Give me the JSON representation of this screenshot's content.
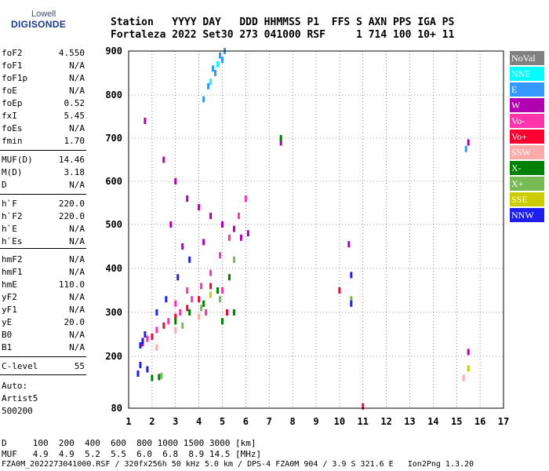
{
  "logo": {
    "line1": "Lowell",
    "line2": "DIGISONDE"
  },
  "header": {
    "line1": "Station   YYYY DAY   DDD HHMMSS P1  FFS S AXN PPS IGA PS",
    "line2": "Fortaleza 2022 Set30 273 041000 RSF     1 714 100 10+ 11"
  },
  "params_a": [
    {
      "name": "foF2",
      "value": "4.550"
    },
    {
      "name": "foF1",
      "value": "N/A"
    },
    {
      "name": "foF1p",
      "value": "N/A"
    },
    {
      "name": "foE",
      "value": "N/A"
    },
    {
      "name": "foEp",
      "value": "0.52"
    },
    {
      "name": "fxI",
      "value": "5.45"
    },
    {
      "name": "foEs",
      "value": "N/A"
    },
    {
      "name": "fmin",
      "value": "1.70"
    }
  ],
  "params_b": [
    {
      "name": "MUF(D)",
      "value": "14.46"
    },
    {
      "name": "M(D)",
      "value": "3.18"
    },
    {
      "name": "D",
      "value": "N/A"
    }
  ],
  "params_c": [
    {
      "name": "h`F",
      "value": "220.0"
    },
    {
      "name": "h`F2",
      "value": "220.0"
    },
    {
      "name": "h`E",
      "value": "N/A"
    },
    {
      "name": "h`Es",
      "value": "N/A"
    }
  ],
  "params_d": [
    {
      "name": "hmF2",
      "value": "N/A"
    },
    {
      "name": "hmF1",
      "value": "N/A"
    },
    {
      "name": "hmE",
      "value": "110.0"
    },
    {
      "name": "yF2",
      "value": "N/A"
    },
    {
      "name": "yF1",
      "value": "N/A"
    },
    {
      "name": "yE",
      "value": "20.0"
    },
    {
      "name": "B0",
      "value": "N/A"
    },
    {
      "name": "B1",
      "value": "N/A"
    }
  ],
  "params_e": [
    {
      "name": "C-level",
      "value": "55"
    }
  ],
  "auto": {
    "line1": "Auto:",
    "line2": "Artist5",
    "line3": "500200"
  },
  "footer": {
    "d_line": "D     100  200  400  600  800 1000 1500 3000 [km]",
    "muf_line": "MUF   4.9  4.9  5.2  5.5  6.0  6.8  8.9 14.5 [MHz]",
    "file_line": "FZA0M_2022273041000.RSF / 320fx256h 50 kHz 5.0 km / DPS-4 FZA0M 904 / 3.9 S 321.6 E   Ion2Png 1.3.20"
  },
  "legend": [
    {
      "label": "NoVal",
      "color": "#808080"
    },
    {
      "label": "NNE",
      "color": "#00ffff"
    },
    {
      "label": "E",
      "color": "#3399ff"
    },
    {
      "label": "W",
      "color": "#b000b0"
    },
    {
      "label": "Vo-",
      "color": "#ff33aa"
    },
    {
      "label": "Vo+",
      "color": "#ff0033"
    },
    {
      "label": "SSW",
      "color": "#ffaaaa"
    },
    {
      "label": "X-",
      "color": "#008000"
    },
    {
      "label": "X+",
      "color": "#77bb55"
    },
    {
      "label": "SSE",
      "color": "#cccc00"
    },
    {
      "label": "NNW",
      "color": "#2020ee"
    }
  ],
  "chart_data": {
    "type": "scatter",
    "xlabel": "",
    "ylabel": "",
    "xlim": [
      1,
      17
    ],
    "ylim": [
      80,
      900
    ],
    "x_ticks": [
      1,
      2,
      3,
      4,
      5,
      6,
      7,
      8,
      9,
      10,
      11,
      12,
      13,
      14,
      15,
      16,
      17
    ],
    "y_ticks": [
      80,
      200,
      300,
      400,
      500,
      600,
      700,
      800,
      900
    ],
    "grid": true,
    "series": [
      {
        "name": "E",
        "color": "#3399ff",
        "points": [
          [
            4.4,
            820
          ],
          [
            4.6,
            860
          ],
          [
            4.9,
            890
          ],
          [
            5.1,
            900
          ],
          [
            4.2,
            790
          ],
          [
            5.0,
            880
          ],
          [
            4.7,
            850
          ],
          [
            15.4,
            675
          ]
        ]
      },
      {
        "name": "W",
        "color": "#b000b0",
        "points": [
          [
            1.7,
            740
          ],
          [
            2.5,
            650
          ],
          [
            3.0,
            600
          ],
          [
            3.5,
            560
          ],
          [
            4.0,
            540
          ],
          [
            4.5,
            520
          ],
          [
            5.0,
            500
          ],
          [
            5.5,
            490
          ],
          [
            5.8,
            470
          ],
          [
            6.1,
            480
          ],
          [
            2.8,
            500
          ],
          [
            3.3,
            450
          ],
          [
            4.2,
            460
          ],
          [
            7.5,
            690
          ],
          [
            10.4,
            455
          ],
          [
            15.5,
            690
          ],
          [
            15.5,
            210
          ]
        ]
      },
      {
        "name": "Vo-",
        "color": "#ff33aa",
        "points": [
          [
            1.8,
            240
          ],
          [
            2.2,
            260
          ],
          [
            2.7,
            280
          ],
          [
            3.2,
            300
          ],
          [
            3.7,
            330
          ],
          [
            4.1,
            360
          ],
          [
            4.5,
            390
          ],
          [
            4.9,
            430
          ],
          [
            5.3,
            470
          ],
          [
            5.7,
            520
          ],
          [
            6.0,
            560
          ],
          [
            3.0,
            320
          ],
          [
            3.5,
            350
          ],
          [
            4.3,
            300
          ],
          [
            5.0,
            350
          ]
        ]
      },
      {
        "name": "Vo+",
        "color": "#ff0033",
        "points": [
          [
            1.6,
            230
          ],
          [
            2.0,
            245
          ],
          [
            2.5,
            270
          ],
          [
            3.0,
            290
          ],
          [
            3.5,
            310
          ],
          [
            4.0,
            330
          ],
          [
            4.5,
            360
          ],
          [
            5.2,
            300
          ],
          [
            10.0,
            350
          ],
          [
            11.0,
            84
          ]
        ]
      },
      {
        "name": "SSW",
        "color": "#ffaaaa",
        "points": [
          [
            2.2,
            220
          ],
          [
            3.0,
            260
          ],
          [
            4.0,
            290
          ],
          [
            15.3,
            150
          ]
        ]
      },
      {
        "name": "X-",
        "color": "#008000",
        "points": [
          [
            2.0,
            150
          ],
          [
            2.3,
            152
          ],
          [
            3.0,
            280
          ],
          [
            3.6,
            300
          ],
          [
            4.2,
            320
          ],
          [
            4.8,
            350
          ],
          [
            5.3,
            380
          ],
          [
            5.0,
            280
          ],
          [
            5.5,
            300
          ],
          [
            7.5,
            700
          ]
        ]
      },
      {
        "name": "X+",
        "color": "#77bb55",
        "points": [
          [
            2.4,
            155
          ],
          [
            3.3,
            270
          ],
          [
            4.1,
            310
          ],
          [
            4.9,
            330
          ],
          [
            5.5,
            420
          ],
          [
            10.5,
            330
          ]
        ]
      },
      {
        "name": "SSE",
        "color": "#cccc00",
        "points": [
          [
            15.5,
            172
          ],
          [
            4.5,
            340
          ]
        ]
      },
      {
        "name": "NNW",
        "color": "#2020ee",
        "points": [
          [
            1.5,
            225
          ],
          [
            1.6,
            235
          ],
          [
            1.7,
            250
          ],
          [
            1.4,
            160
          ],
          [
            1.5,
            180
          ],
          [
            1.8,
            170
          ],
          [
            2.2,
            300
          ],
          [
            2.6,
            330
          ],
          [
            3.1,
            380
          ],
          [
            3.6,
            420
          ],
          [
            10.5,
            385
          ],
          [
            10.5,
            320
          ]
        ]
      },
      {
        "name": "NNE",
        "color": "#00ffff",
        "points": [
          [
            4.5,
            830
          ],
          [
            4.8,
            870
          ]
        ]
      }
    ]
  }
}
